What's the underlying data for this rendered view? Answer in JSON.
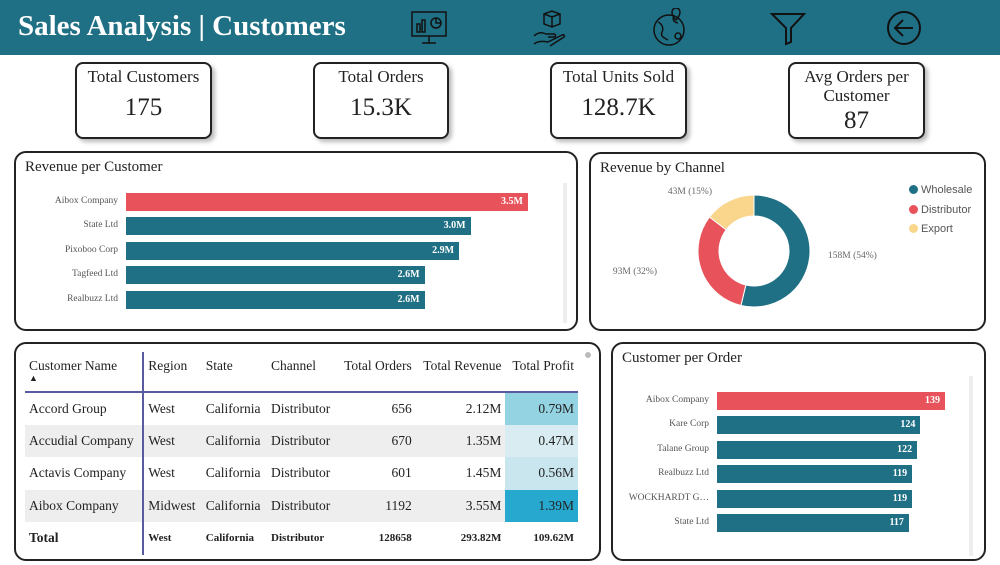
{
  "header": {
    "title": "Sales Analysis | Customers",
    "icons": [
      "dashboard-presentation-icon",
      "product-delivery-icon",
      "globe-location-icon",
      "filter-icon",
      "back-arrow-icon"
    ]
  },
  "kpis": [
    {
      "label": "Total Customers",
      "value": "175"
    },
    {
      "label": "Total Orders",
      "value": "15.3K"
    },
    {
      "label": "Total Units Sold",
      "value": "128.7K"
    },
    {
      "label": "Avg Orders per Customer",
      "value": "87"
    }
  ],
  "colors": {
    "teal": "#1f7085",
    "red": "#e8535b",
    "yellow": "#f9d68c",
    "highlight": "#27a9cf"
  },
  "revenue_per_customer": {
    "title": "Revenue per Customer",
    "chart_data": {
      "type": "bar",
      "orientation": "horizontal",
      "categories": [
        "Aibox Company",
        "State Ltd",
        "Pixoboo Corp",
        "Tagfeed Ltd",
        "Realbuzz Ltd"
      ],
      "values": [
        3.5,
        3.0,
        2.9,
        2.6,
        2.6
      ],
      "labels": [
        "3.5M",
        "3.0M",
        "2.9M",
        "2.6M",
        "2.6M"
      ],
      "unit": "M",
      "highlight": "Aibox Company"
    }
  },
  "revenue_by_channel": {
    "title": "Revenue by Channel",
    "chart_data": {
      "type": "pie",
      "donut": true,
      "legend": "top-right",
      "slices": [
        {
          "name": "Wholesale",
          "value": 158,
          "percent": 54,
          "label": "158M (54%)",
          "color": "#1f7085"
        },
        {
          "name": "Distributor",
          "value": 93,
          "percent": 32,
          "label": "93M (32%)",
          "color": "#e8535b"
        },
        {
          "name": "Export",
          "value": 43,
          "percent": 15,
          "label": "43M (15%)",
          "color": "#f9d68c"
        }
      ]
    }
  },
  "table": {
    "columns": [
      "Customer Name",
      "Region",
      "State",
      "Channel",
      "Total Orders",
      "Total Revenue",
      "Total Profit"
    ],
    "rows": [
      [
        "Accord Group",
        "West",
        "California",
        "Distributor",
        "656",
        "2.12M",
        "0.79M"
      ],
      [
        "Accudial Company",
        "West",
        "California",
        "Distributor",
        "670",
        "1.35M",
        "0.47M"
      ],
      [
        "Actavis Company",
        "West",
        "California",
        "Distributor",
        "601",
        "1.45M",
        "0.56M"
      ],
      [
        "Aibox Company",
        "Midwest",
        "California",
        "Distributor",
        "1192",
        "3.55M",
        "1.39M"
      ]
    ],
    "total": [
      "Total",
      "West",
      "California",
      "Distributor",
      "128658",
      "293.82M",
      "109.62M"
    ],
    "profit_colors": [
      "#93d3e2",
      "#d8ecf1",
      "#c9e6ee",
      "#27a9cf"
    ]
  },
  "customer_per_order": {
    "title": "Customer per Order",
    "chart_data": {
      "type": "bar",
      "orientation": "horizontal",
      "categories": [
        "Aibox Company",
        "Kare Corp",
        "Talane Group",
        "Realbuzz Ltd",
        "WOCKHARDT G…",
        "State Ltd"
      ],
      "values": [
        139,
        124,
        122,
        119,
        119,
        117
      ],
      "highlight": "Aibox Company"
    }
  }
}
